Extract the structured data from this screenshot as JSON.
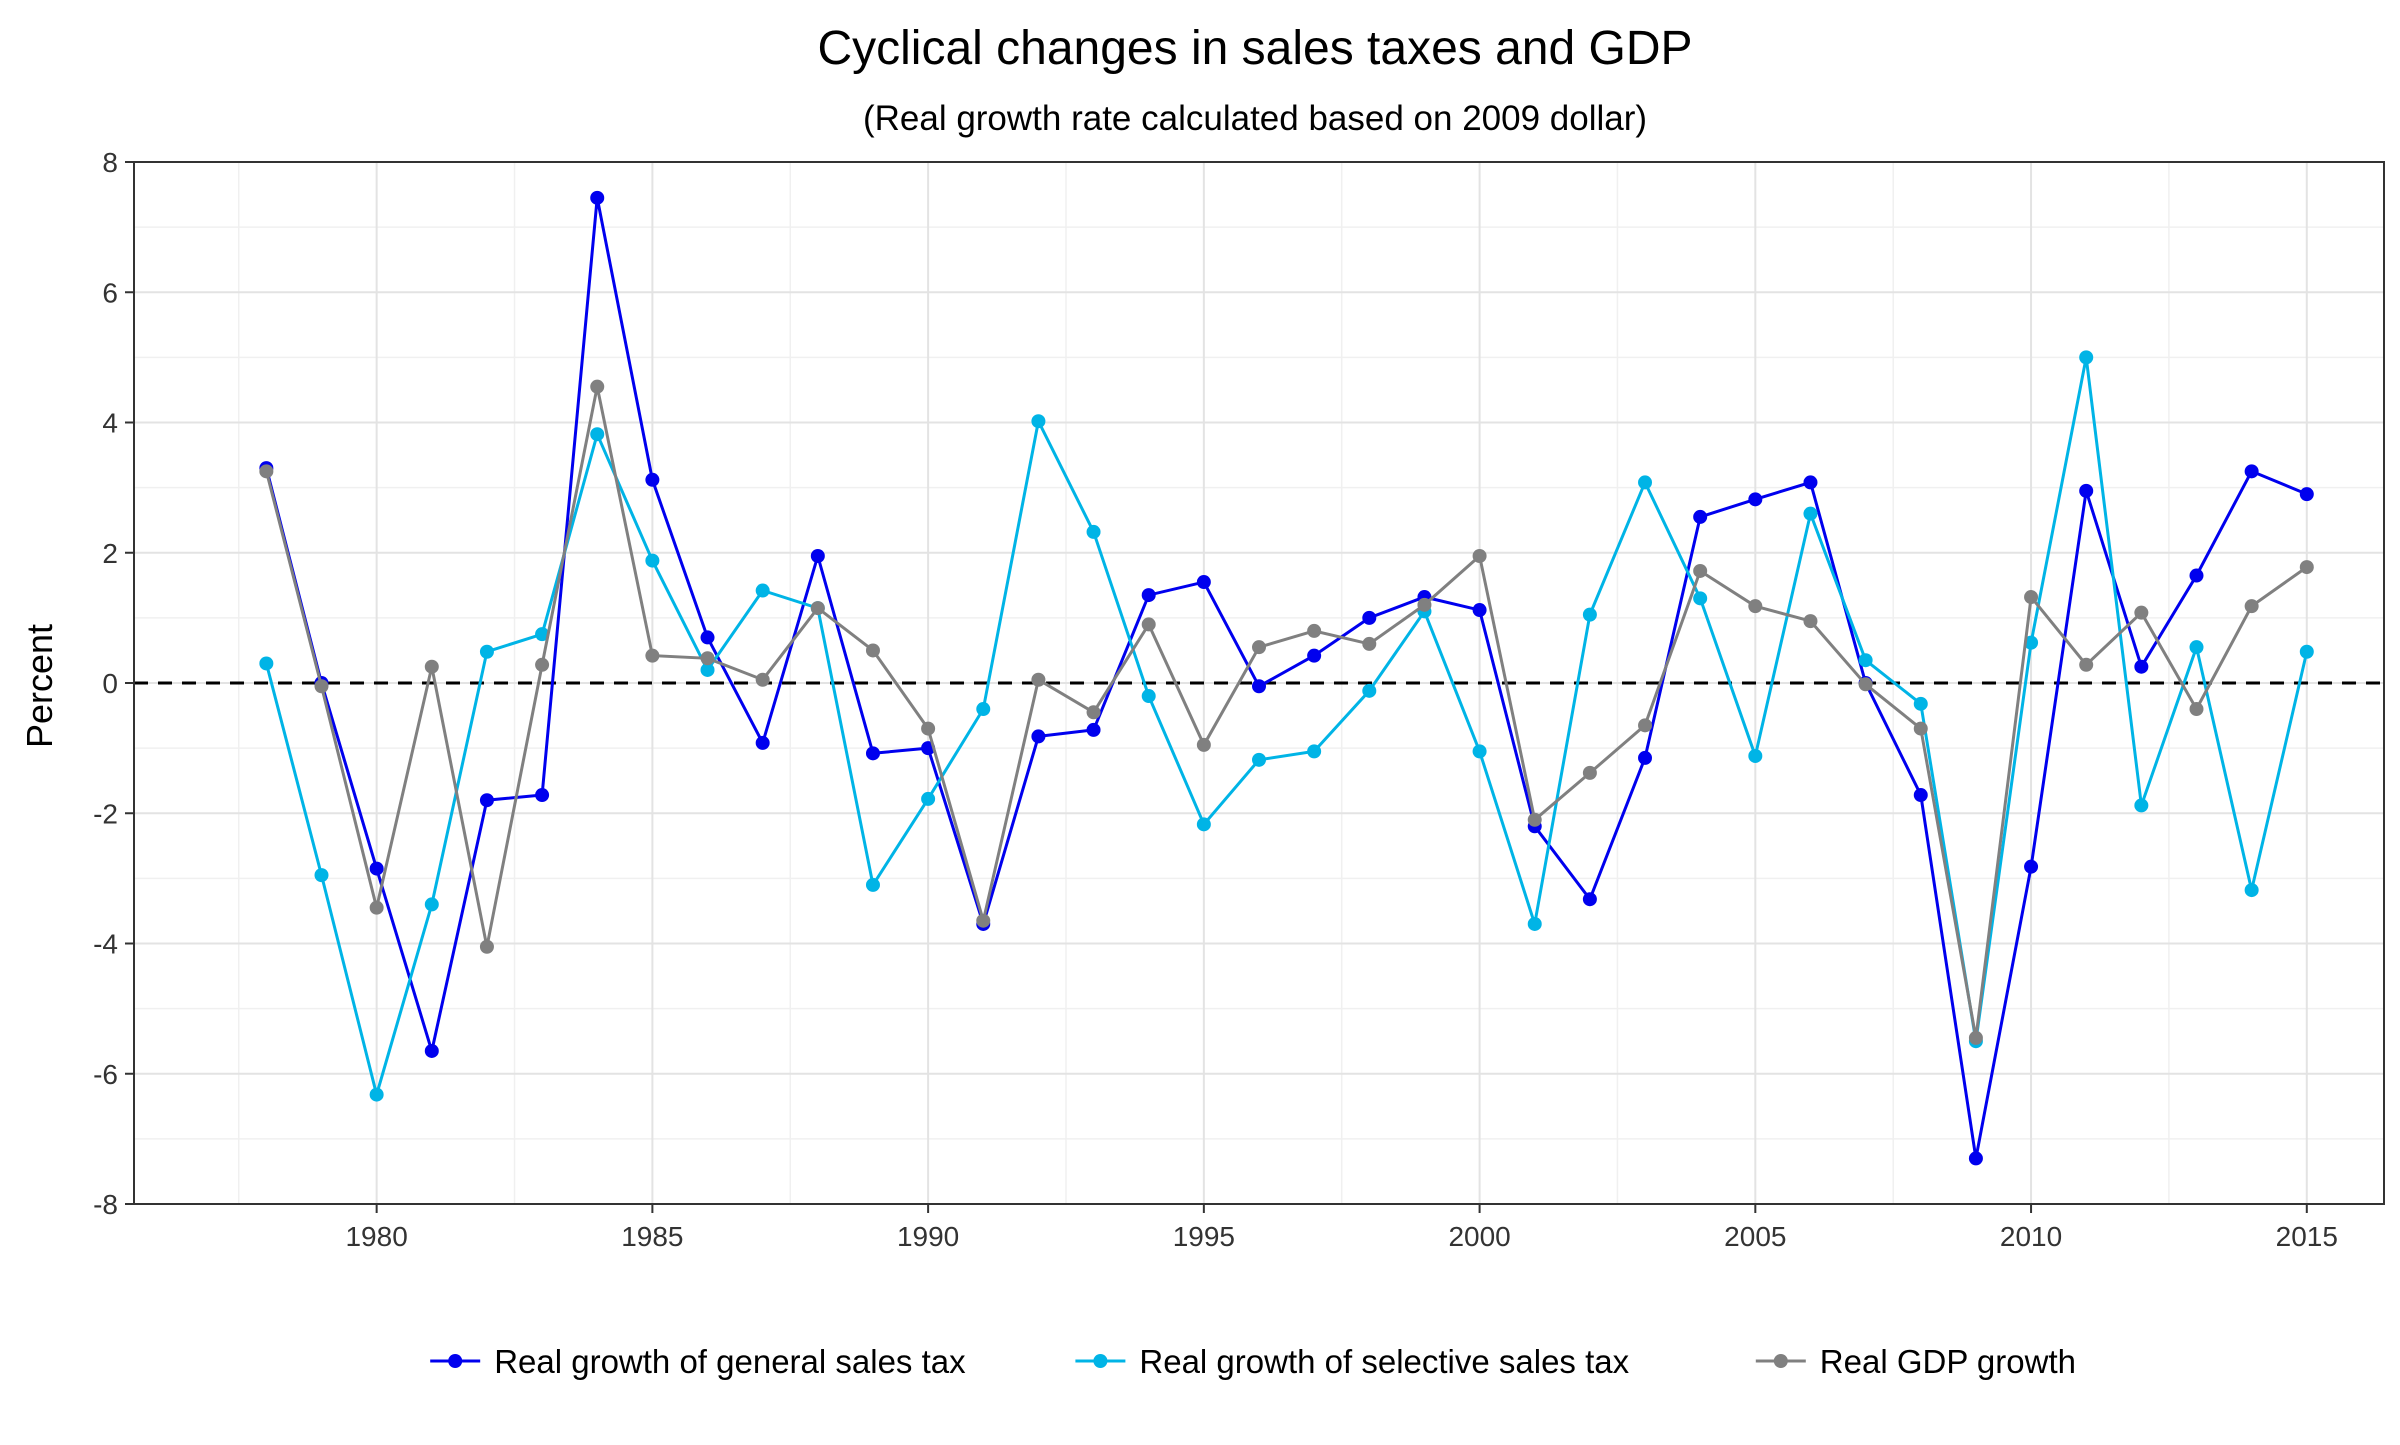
{
  "chart_data": {
    "type": "line",
    "title": "Cyclical changes in sales taxes and GDP",
    "subtitle": "(Real growth rate calculated based on 2009 dollar)",
    "xlabel": "",
    "ylabel": "Percent",
    "xlim": [
      1975.6,
      2016.4
    ],
    "ylim": [
      -8,
      8
    ],
    "x_ticks": [
      1980,
      1985,
      1990,
      1995,
      2000,
      2005,
      2010,
      2015
    ],
    "y_ticks": [
      -8,
      -6,
      -4,
      -2,
      0,
      2,
      4,
      6,
      8
    ],
    "grid": true,
    "reference_line": {
      "y": 0,
      "style": "dashed"
    },
    "legend_position": "bottom",
    "x": [
      1978,
      1979,
      1980,
      1981,
      1982,
      1983,
      1984,
      1985,
      1986,
      1987,
      1988,
      1989,
      1990,
      1991,
      1992,
      1993,
      1994,
      1995,
      1996,
      1997,
      1998,
      1999,
      2000,
      2001,
      2002,
      2003,
      2004,
      2005,
      2006,
      2007,
      2008,
      2009,
      2010,
      2011,
      2012,
      2013,
      2014,
      2015
    ],
    "series": [
      {
        "name": "Real growth of general sales tax",
        "color": "#0000ee",
        "values": [
          3.3,
          0.0,
          -2.85,
          -5.65,
          -1.8,
          -1.72,
          7.45,
          3.12,
          0.7,
          -0.92,
          1.95,
          -1.08,
          -1.0,
          -3.7,
          -0.82,
          -0.72,
          1.35,
          1.55,
          -0.05,
          0.42,
          1.0,
          1.32,
          1.12,
          -2.2,
          -3.32,
          -1.15,
          2.55,
          2.82,
          3.08,
          0.0,
          -1.72,
          -7.3,
          -2.82,
          2.95,
          0.25,
          1.65,
          3.25,
          2.9
        ]
      },
      {
        "name": "Real growth of selective sales tax",
        "color": "#00b4e6",
        "values": [
          0.3,
          -2.95,
          -6.32,
          -3.4,
          0.48,
          0.75,
          3.82,
          1.88,
          0.2,
          1.42,
          1.15,
          -3.1,
          -1.78,
          -0.4,
          4.02,
          2.32,
          -0.2,
          -2.17,
          -1.18,
          -1.05,
          -0.12,
          1.1,
          -1.05,
          -3.7,
          1.05,
          3.08,
          1.3,
          -1.12,
          2.6,
          0.35,
          -0.32,
          -5.5,
          0.62,
          5.0,
          -1.88,
          0.55,
          -3.18,
          0.48
        ]
      },
      {
        "name": "Real GDP growth",
        "color": "#808080",
        "values": [
          3.25,
          -0.05,
          -3.45,
          0.25,
          -4.05,
          0.28,
          4.55,
          0.42,
          0.38,
          0.05,
          1.15,
          0.5,
          -0.7,
          -3.65,
          0.05,
          -0.45,
          0.9,
          -0.95,
          0.55,
          0.8,
          0.6,
          1.2,
          1.95,
          -2.1,
          -1.38,
          -0.65,
          1.72,
          1.18,
          0.95,
          -0.02,
          -0.7,
          -5.45,
          1.32,
          0.28,
          1.08,
          -0.4,
          1.18,
          1.78
        ]
      }
    ]
  }
}
